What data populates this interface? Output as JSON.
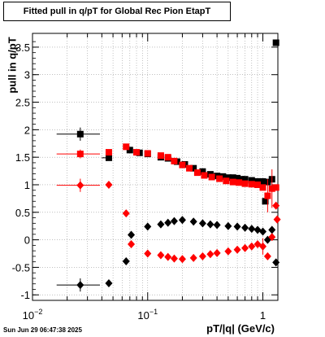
{
  "title": "Fitted pull in q/pT for Global Rec Pion EtapT",
  "timestamp": "Sun Jun 29 06:47:38 2025",
  "colors": {
    "black_series": "#000000",
    "red_series": "#ff0000",
    "grid": "#9a9a9a",
    "frame": "#000000"
  },
  "chart_data": {
    "type": "scatter",
    "title": "Fitted pull in q/pT for Global Rec Pion EtapT",
    "xlabel": "pT/|q| (GeV/c)",
    "ylabel": "pull in q/pT",
    "x_scale": "log",
    "xlim": [
      0.01,
      1.35
    ],
    "ylim": [
      -1.1,
      3.75
    ],
    "grid": true,
    "x_tick_labels": [
      "10^-2",
      "10^-1",
      "1"
    ],
    "y_tick_labels": [
      "-1",
      "-0.5",
      "0",
      "0.5",
      "1",
      "1.5",
      "2",
      "2.5",
      "3",
      "3.5"
    ],
    "series": [
      {
        "marker": "square",
        "color": "#000000",
        "points": [
          {
            "x": 0.026,
            "y": 1.92,
            "xerr": [
              0.0098,
              0.0125
            ],
            "yerr": 0.12
          },
          {
            "x": 0.046,
            "y": 1.49,
            "xerr": [
              0.006,
              0.0
            ],
            "yerr": 0.05
          },
          {
            "x": 0.07,
            "y": 1.63
          },
          {
            "x": 0.085,
            "y": 1.58
          },
          {
            "x": 0.1,
            "y": 1.56
          },
          {
            "x": 0.13,
            "y": 1.5
          },
          {
            "x": 0.15,
            "y": 1.48
          },
          {
            "x": 0.18,
            "y": 1.42
          },
          {
            "x": 0.21,
            "y": 1.37
          },
          {
            "x": 0.25,
            "y": 1.3
          },
          {
            "x": 0.3,
            "y": 1.24
          },
          {
            "x": 0.35,
            "y": 1.19
          },
          {
            "x": 0.4,
            "y": 1.16
          },
          {
            "x": 0.45,
            "y": 1.15
          },
          {
            "x": 0.5,
            "y": 1.13
          },
          {
            "x": 0.55,
            "y": 1.13
          },
          {
            "x": 0.6,
            "y": 1.12
          },
          {
            "x": 0.65,
            "y": 1.1
          },
          {
            "x": 0.7,
            "y": 1.1
          },
          {
            "x": 0.8,
            "y": 1.08
          },
          {
            "x": 0.9,
            "y": 1.06
          },
          {
            "x": 1.0,
            "y": 1.06
          },
          {
            "x": 1.05,
            "y": 0.7
          },
          {
            "x": 1.1,
            "y": 1.05
          },
          {
            "x": 1.2,
            "y": 1.1
          },
          {
            "x": 1.3,
            "y": 3.58
          }
        ]
      },
      {
        "marker": "square",
        "color": "#ff0000",
        "points": [
          {
            "x": 0.026,
            "y": 1.56,
            "xerr": [
              0.0098,
              0.0125
            ],
            "yerr": 0.08
          },
          {
            "x": 0.046,
            "y": 1.59,
            "yerr": 0.05
          },
          {
            "x": 0.065,
            "y": 1.69
          },
          {
            "x": 0.08,
            "y": 1.59
          },
          {
            "x": 0.1,
            "y": 1.57
          },
          {
            "x": 0.13,
            "y": 1.53
          },
          {
            "x": 0.15,
            "y": 1.5
          },
          {
            "x": 0.17,
            "y": 1.43
          },
          {
            "x": 0.2,
            "y": 1.36
          },
          {
            "x": 0.23,
            "y": 1.3
          },
          {
            "x": 0.27,
            "y": 1.22
          },
          {
            "x": 0.31,
            "y": 1.17
          },
          {
            "x": 0.36,
            "y": 1.14
          },
          {
            "x": 0.42,
            "y": 1.11
          },
          {
            "x": 0.48,
            "y": 1.07
          },
          {
            "x": 0.55,
            "y": 1.05
          },
          {
            "x": 0.62,
            "y": 1.04
          },
          {
            "x": 0.7,
            "y": 1.02
          },
          {
            "x": 0.8,
            "y": 1.01
          },
          {
            "x": 0.9,
            "y": 1.0
          },
          {
            "x": 1.0,
            "y": 0.95
          },
          {
            "x": 1.1,
            "y": 0.8,
            "yerr": 0.3
          },
          {
            "x": 1.2,
            "y": 0.93,
            "yerr": 0.35
          },
          {
            "x": 1.3,
            "y": 0.95
          }
        ]
      },
      {
        "marker": "diamond",
        "color": "#000000",
        "points": [
          {
            "x": 0.026,
            "y": -0.82,
            "xerr": [
              0.0098,
              0.0125
            ],
            "yerr": 0.12
          },
          {
            "x": 0.046,
            "y": -0.79
          },
          {
            "x": 0.065,
            "y": -0.39
          },
          {
            "x": 0.072,
            "y": 0.09
          },
          {
            "x": 0.1,
            "y": 0.24
          },
          {
            "x": 0.13,
            "y": 0.28
          },
          {
            "x": 0.15,
            "y": 0.31
          },
          {
            "x": 0.17,
            "y": 0.34
          },
          {
            "x": 0.2,
            "y": 0.36
          },
          {
            "x": 0.25,
            "y": 0.33
          },
          {
            "x": 0.3,
            "y": 0.3
          },
          {
            "x": 0.35,
            "y": 0.28
          },
          {
            "x": 0.4,
            "y": 0.27
          },
          {
            "x": 0.5,
            "y": 0.25
          },
          {
            "x": 0.6,
            "y": 0.24
          },
          {
            "x": 0.7,
            "y": 0.22
          },
          {
            "x": 0.8,
            "y": 0.2
          },
          {
            "x": 0.9,
            "y": 0.18
          },
          {
            "x": 1.0,
            "y": 0.15
          },
          {
            "x": 1.1,
            "y": 0.0
          },
          {
            "x": 1.2,
            "y": 0.18
          },
          {
            "x": 1.3,
            "y": -0.41
          }
        ]
      },
      {
        "marker": "diamond",
        "color": "#ff0000",
        "points": [
          {
            "x": 0.026,
            "y": 0.99,
            "xerr": [
              0.0098,
              0.0125
            ],
            "yerr": 0.12
          },
          {
            "x": 0.046,
            "y": 1.0
          },
          {
            "x": 0.065,
            "y": 0.48
          },
          {
            "x": 0.072,
            "y": -0.08
          },
          {
            "x": 0.1,
            "y": -0.25
          },
          {
            "x": 0.13,
            "y": -0.28
          },
          {
            "x": 0.15,
            "y": -0.31
          },
          {
            "x": 0.17,
            "y": -0.34
          },
          {
            "x": 0.2,
            "y": -0.35
          },
          {
            "x": 0.25,
            "y": -0.33
          },
          {
            "x": 0.3,
            "y": -0.3
          },
          {
            "x": 0.35,
            "y": -0.26
          },
          {
            "x": 0.4,
            "y": -0.24
          },
          {
            "x": 0.5,
            "y": -0.21
          },
          {
            "x": 0.6,
            "y": -0.18
          },
          {
            "x": 0.7,
            "y": -0.15
          },
          {
            "x": 0.8,
            "y": -0.12
          },
          {
            "x": 0.9,
            "y": -0.08
          },
          {
            "x": 1.0,
            "y": -0.12,
            "yerr": 0.15
          },
          {
            "x": 1.1,
            "y": -0.3
          },
          {
            "x": 1.2,
            "y": 0.05
          },
          {
            "x": 1.3,
            "y": 0.62
          },
          {
            "x": 1.33,
            "y": 0.37
          }
        ]
      }
    ]
  }
}
